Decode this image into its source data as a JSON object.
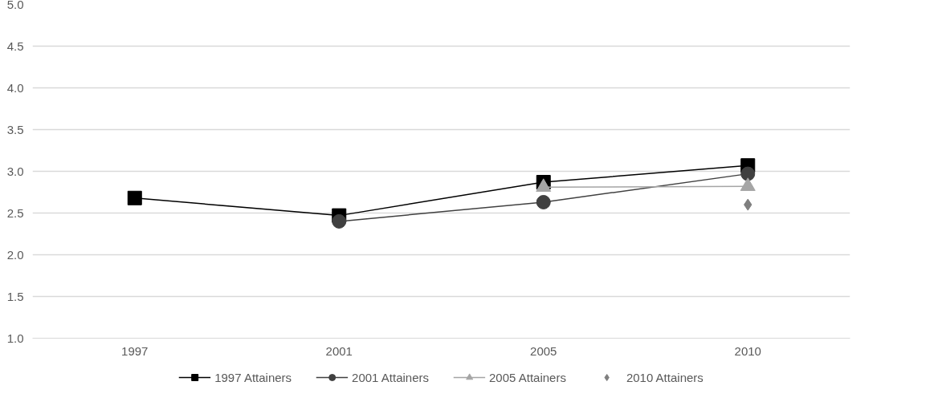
{
  "chart_data": {
    "type": "line",
    "categories": [
      "1997",
      "2001",
      "2005",
      "2010"
    ],
    "ylim": [
      1.0,
      5.0
    ],
    "yticks": [
      {
        "value": 1.0,
        "label": "1.0"
      },
      {
        "value": 1.5,
        "label": "1.5"
      },
      {
        "value": 2.0,
        "label": "2.0"
      },
      {
        "value": 2.5,
        "label": "2.5"
      },
      {
        "value": 3.0,
        "label": "3.0"
      },
      {
        "value": 3.5,
        "label": "3.5"
      },
      {
        "value": 4.0,
        "label": "4.0"
      },
      {
        "value": 4.5,
        "label": "4.5"
      },
      {
        "value": 5.0,
        "label": "5.0"
      }
    ],
    "grid": "y",
    "legend": "bottom",
    "series": [
      {
        "name": "1997 Attainers",
        "color": "#000000",
        "marker": "square",
        "values": [
          2.68,
          2.47,
          2.87,
          3.07
        ]
      },
      {
        "name": "2001 Attainers",
        "color": "#404040",
        "marker": "circle",
        "values": [
          null,
          2.4,
          2.63,
          2.97
        ]
      },
      {
        "name": "2005 Attainers",
        "color": "#a5a5a5",
        "marker": "triangle",
        "values": [
          null,
          null,
          2.81,
          2.82
        ]
      },
      {
        "name": "2010 Attainers",
        "color": "#7f7f7f",
        "marker": "diamond",
        "type": "scatter",
        "values": [
          null,
          null,
          null,
          2.6
        ]
      }
    ]
  }
}
